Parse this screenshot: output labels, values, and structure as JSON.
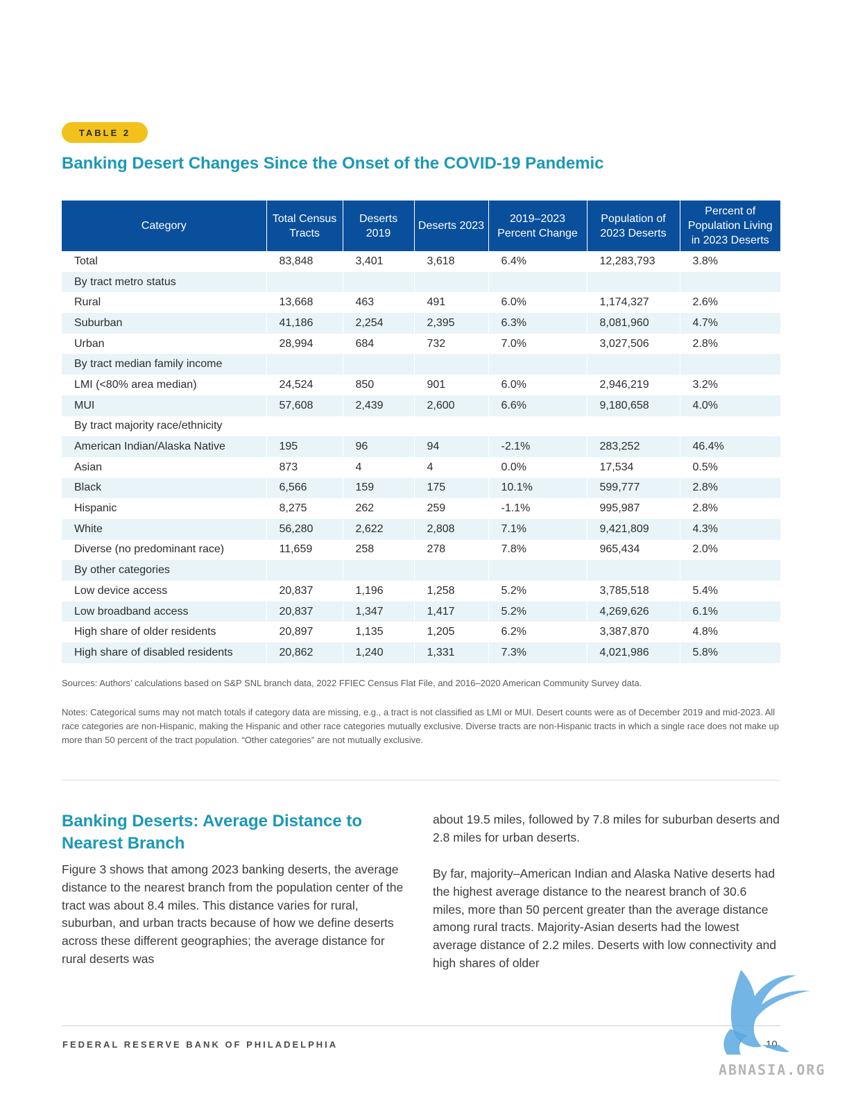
{
  "badge": "TABLE 2",
  "table_title": "Banking Desert Changes Since the Onset of the COVID-19 Pandemic",
  "table": {
    "headers": [
      "Category",
      "Total Census Tracts",
      "Deserts 2019",
      "Deserts 2023",
      "2019–2023 Percent Change",
      "Population of 2023 Deserts",
      "Percent of Population Living in 2023 Deserts"
    ],
    "rows": [
      {
        "label": "Total",
        "indent": 0,
        "values": [
          "83,848",
          "3,401",
          "3,618",
          "6.4%",
          "12,283,793",
          "3.8%"
        ]
      },
      {
        "label": "By tract metro status",
        "indent": 0,
        "values": [
          "",
          "",
          "",
          "",
          "",
          ""
        ]
      },
      {
        "label": "Rural",
        "indent": 1,
        "values": [
          "13,668",
          "463",
          "491",
          "6.0%",
          "1,174,327",
          "2.6%"
        ]
      },
      {
        "label": "Suburban",
        "indent": 1,
        "values": [
          "41,186",
          "2,254",
          "2,395",
          "6.3%",
          "8,081,960",
          "4.7%"
        ]
      },
      {
        "label": "Urban",
        "indent": 1,
        "values": [
          "28,994",
          "684",
          "732",
          "7.0%",
          "3,027,506",
          "2.8%"
        ]
      },
      {
        "label": "By tract median family income",
        "indent": 0,
        "values": [
          "",
          "",
          "",
          "",
          "",
          ""
        ]
      },
      {
        "label": "LMI (<80% area median)",
        "indent": 1,
        "values": [
          "24,524",
          "850",
          "901",
          "6.0%",
          "2,946,219",
          "3.2%"
        ]
      },
      {
        "label": "MUI",
        "indent": 1,
        "values": [
          "57,608",
          "2,439",
          "2,600",
          "6.6%",
          "9,180,658",
          "4.0%"
        ]
      },
      {
        "label": "By tract majority race/ethnicity",
        "indent": 0,
        "values": [
          "",
          "",
          "",
          "",
          "",
          ""
        ]
      },
      {
        "label": "American Indian/Alaska Native",
        "indent": 1,
        "values": [
          "195",
          "96",
          "94",
          "-2.1%",
          "283,252",
          "46.4%"
        ]
      },
      {
        "label": "Asian",
        "indent": 1,
        "values": [
          "873",
          "4",
          "4",
          "0.0%",
          "17,534",
          "0.5%"
        ]
      },
      {
        "label": "Black",
        "indent": 1,
        "values": [
          "6,566",
          "159",
          "175",
          "10.1%",
          "599,777",
          "2.8%"
        ]
      },
      {
        "label": "Hispanic",
        "indent": 1,
        "values": [
          "8,275",
          "262",
          "259",
          "-1.1%",
          "995,987",
          "2.8%"
        ]
      },
      {
        "label": "White",
        "indent": 1,
        "values": [
          "56,280",
          "2,622",
          "2,808",
          "7.1%",
          "9,421,809",
          "4.3%"
        ]
      },
      {
        "label": "Diverse (no predominant race)",
        "indent": 1,
        "values": [
          "11,659",
          "258",
          "278",
          "7.8%",
          "965,434",
          "2.0%"
        ]
      },
      {
        "label": "By other categories",
        "indent": 0,
        "values": [
          "",
          "",
          "",
          "",
          "",
          ""
        ]
      },
      {
        "label": "Low device access",
        "indent": 2,
        "values": [
          "20,837",
          "1,196",
          "1,258",
          "5.2%",
          "3,785,518",
          "5.4%"
        ]
      },
      {
        "label": "Low broadband access",
        "indent": 2,
        "values": [
          "20,837",
          "1,347",
          "1,417",
          "5.2%",
          "4,269,626",
          "6.1%"
        ]
      },
      {
        "label": "High share of older residents",
        "indent": 2,
        "values": [
          "20,897",
          "1,135",
          "1,205",
          "6.2%",
          "3,387,870",
          "4.8%"
        ]
      },
      {
        "label": "High share of disabled residents",
        "indent": 2,
        "values": [
          "20,862",
          "1,240",
          "1,331",
          "7.3%",
          "4,021,986",
          "5.8%"
        ]
      }
    ]
  },
  "sources": "Sources: Authors’ calculations based on S&P SNL branch data, 2022 FFIEC Census Flat File, and 2016–2020 American Community Survey data.",
  "notes": "Notes: Categorical sums may not match totals if category data are missing, e.g., a tract is not classified as LMI or MUI. Desert counts were as of December 2019 and mid-2023. All race categories are non-Hispanic, making the Hispanic and other race categories mutually exclusive. Diverse tracts are non-Hispanic tracts in which a single race does not make up more than 50 percent of the tract population. “Other categories” are not mutually exclusive.",
  "section": {
    "heading": "Banking Deserts: Average Distance to Nearest Branch",
    "para_left": "Figure 3 shows that among 2023 banking deserts, the average distance to the nearest branch from the population center of the tract was about 8.4 miles. This distance varies for rural, suburban, and urban tracts because of how we define deserts across these different geographies; the average distance for rural deserts was",
    "para_right1": "about 19.5 miles, followed by 7.8 miles for suburban deserts and 2.8 miles for urban deserts.",
    "para_right2": "By far, majority–American Indian and Alaska Native deserts had the highest average distance to the nearest branch of 30.6 miles, more than 50 percent greater than the average distance among rural tracts. Majority-Asian deserts had the lowest average distance of 2.2 miles. Deserts with low connectivity and high shares of older"
  },
  "footer": {
    "org": "FEDERAL RESERVE BANK OF PHILADELPHIA",
    "page": "10"
  },
  "watermark": {
    "text": "ABNASIA.ORG",
    "icon": "griffin-logo-icon",
    "color": "#5aa8df"
  },
  "colors": {
    "accent": "#1c98b5",
    "header_bg": "#0a4f9c",
    "badge": "#f2c11b",
    "row_shade": "#e8f4f8"
  }
}
